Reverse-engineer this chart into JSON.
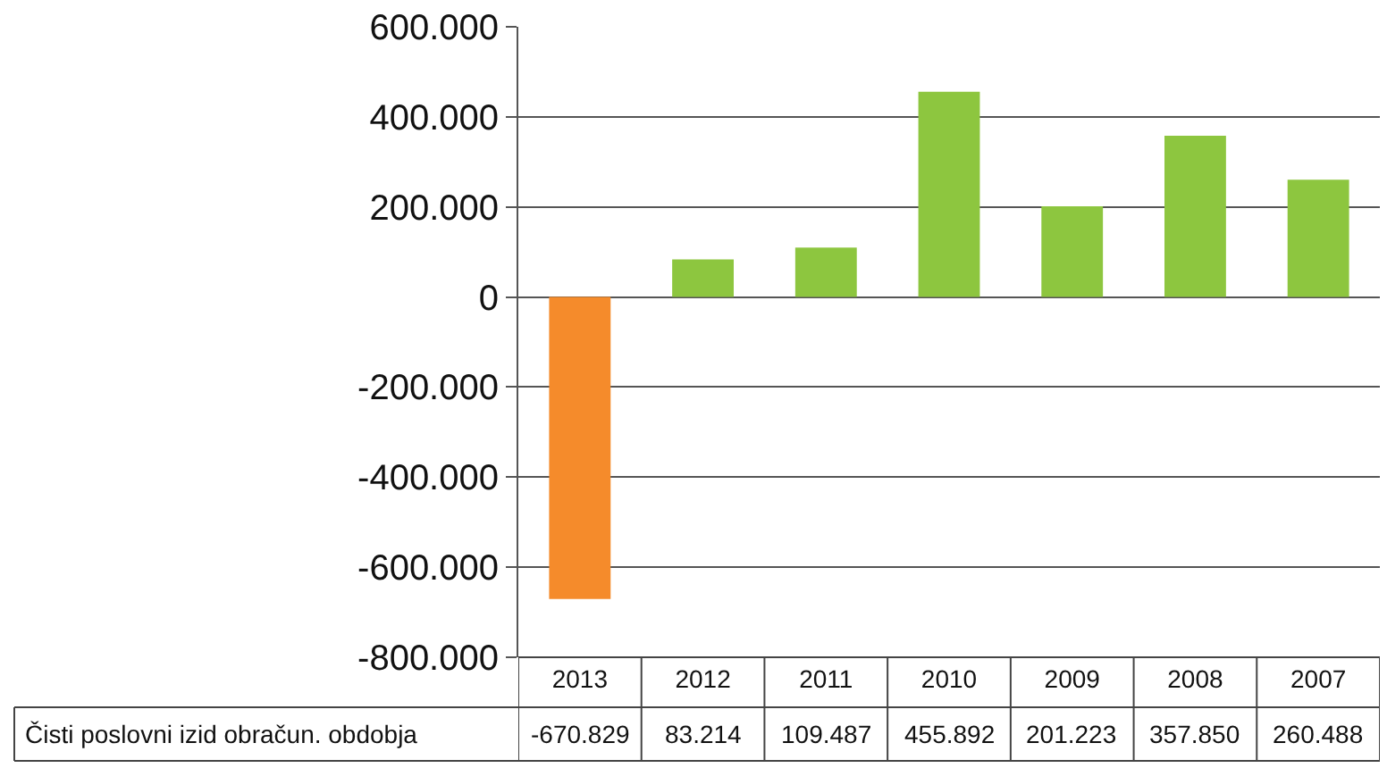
{
  "chart_data": {
    "type": "bar",
    "categories": [
      "2013",
      "2012",
      "2011",
      "2010",
      "2009",
      "2008",
      "2007"
    ],
    "series": [
      {
        "name": "Čisti poslovni izid obračun. obdobja",
        "values": [
          -670829,
          83214,
          109487,
          455892,
          201223,
          357850,
          260488
        ],
        "colors": [
          "#f58b2b",
          "#8dc63f",
          "#8dc63f",
          "#8dc63f",
          "#8dc63f",
          "#8dc63f",
          "#8dc63f"
        ],
        "value_labels": [
          "-670.829",
          "83.214",
          "109.487",
          "455.892",
          "201.223",
          "357.850",
          "260.488"
        ]
      }
    ],
    "ylim": [
      -800000,
      600000
    ],
    "yticks": [
      {
        "value": 600000,
        "label": "600.000"
      },
      {
        "value": 400000,
        "label": "400.000"
      },
      {
        "value": 200000,
        "label": "200.000"
      },
      0,
      {
        "value": -200000,
        "label": "-200.000"
      },
      {
        "value": -400000,
        "label": "-400.000"
      },
      {
        "value": -600000,
        "label": "-600.000"
      },
      {
        "value": -800000,
        "label": "-800.000"
      }
    ],
    "grid": "y",
    "legend": false
  }
}
